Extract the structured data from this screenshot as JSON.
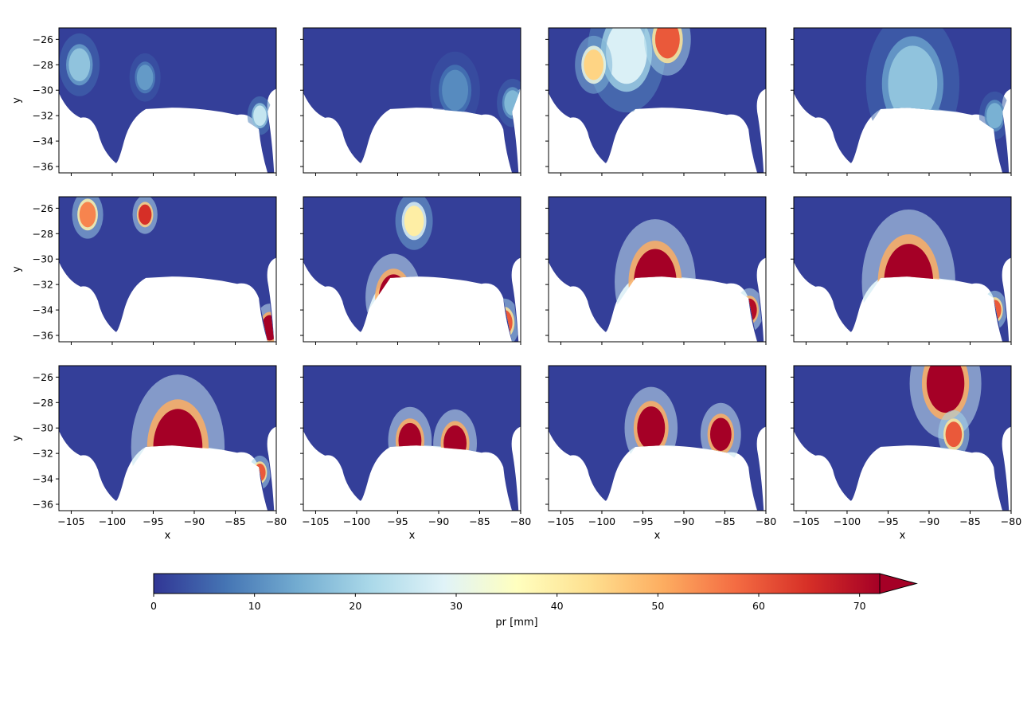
{
  "chart_data": {
    "type": "heatmap",
    "layout": {
      "rows": 3,
      "cols": 4,
      "sharex": true,
      "sharey": true
    },
    "variable": "pr",
    "colorbar": {
      "label": "pr [mm]",
      "min": 0,
      "max": 72,
      "ticks": [
        0,
        10,
        20,
        30,
        40,
        50,
        60,
        70
      ],
      "extend": "max",
      "cmap": "RdYlBu_r",
      "colors": [
        "#313695",
        "#4575b4",
        "#74add1",
        "#abd9e9",
        "#e0f3f8",
        "#ffffbf",
        "#fee090",
        "#fdae61",
        "#f46d43",
        "#d73027",
        "#a50026"
      ]
    },
    "xlabel": "x",
    "ylabel": "y",
    "xlim": [
      -106.5,
      -80
    ],
    "ylim": [
      -36.5,
      -25.1
    ],
    "xticks": [
      -105,
      -100,
      -95,
      -90,
      -85,
      -80
    ],
    "yticks": [
      -26,
      -28,
      -30,
      -32,
      -34,
      -36
    ],
    "land_value": 1,
    "panels": [
      {
        "index": 1,
        "cells": [
          {
            "x": -104,
            "y": -28,
            "r": 1.3,
            "v": 18
          },
          {
            "x": -82,
            "y": -32,
            "r": 0.8,
            "v": 25
          },
          {
            "x": -96,
            "y": -29,
            "r": 1.0,
            "v": 12
          }
        ]
      },
      {
        "index": 2,
        "cells": [
          {
            "x": -88,
            "y": -30,
            "r": 1.6,
            "v": 10
          },
          {
            "x": -81,
            "y": -31,
            "r": 1.0,
            "v": 16
          }
        ]
      },
      {
        "index": 3,
        "cells": [
          {
            "x": -97,
            "y": -27,
            "r": 2.5,
            "v": 28
          },
          {
            "x": -92,
            "y": -26,
            "r": 1.5,
            "v": 60
          },
          {
            "x": -101,
            "y": -28,
            "r": 1.2,
            "v": 45
          }
        ]
      },
      {
        "index": 4,
        "cells": [
          {
            "x": -92,
            "y": -29.5,
            "r": 3.0,
            "v": 18
          },
          {
            "x": -82,
            "y": -32,
            "r": 1.0,
            "v": 15
          }
        ]
      },
      {
        "index": 5,
        "cells": [
          {
            "x": -103,
            "y": -26.5,
            "r": 1.0,
            "v": 55
          },
          {
            "x": -96,
            "y": -26.5,
            "r": 0.8,
            "v": 65
          },
          {
            "x": -80.8,
            "y": -35.4,
            "r": 1.0,
            "v": 72
          }
        ]
      },
      {
        "index": 6,
        "cells": [
          {
            "x": -95.5,
            "y": -33.0,
            "r": 1.8,
            "v": 72
          },
          {
            "x": -93,
            "y": -27,
            "r": 1.2,
            "v": 40
          },
          {
            "x": -82,
            "y": -35,
            "r": 1.0,
            "v": 60
          }
        ]
      },
      {
        "index": 7,
        "cells": [
          {
            "x": -93.5,
            "y": -31.8,
            "r": 2.6,
            "v": 72
          },
          {
            "x": -82,
            "y": -34,
            "r": 0.9,
            "v": 70
          }
        ]
      },
      {
        "index": 8,
        "cells": [
          {
            "x": -92.5,
            "y": -31.8,
            "r": 3.0,
            "v": 72
          },
          {
            "x": -82,
            "y": -34,
            "r": 0.8,
            "v": 60
          }
        ]
      },
      {
        "index": 9,
        "cells": [
          {
            "x": -92,
            "y": -31.5,
            "r": 3.0,
            "v": 72
          },
          {
            "x": -82,
            "y": -33.5,
            "r": 0.7,
            "v": 60
          }
        ]
      },
      {
        "index": 10,
        "cells": [
          {
            "x": -93.5,
            "y": -31.0,
            "r": 1.4,
            "v": 72
          },
          {
            "x": -88,
            "y": -31.2,
            "r": 1.4,
            "v": 72
          }
        ]
      },
      {
        "index": 11,
        "cells": [
          {
            "x": -94,
            "y": -30.0,
            "r": 1.7,
            "v": 72
          },
          {
            "x": -85.5,
            "y": -30.5,
            "r": 1.3,
            "v": 72
          }
        ]
      },
      {
        "index": 12,
        "cells": [
          {
            "x": -88,
            "y": -26.5,
            "r": 2.3,
            "v": 72
          },
          {
            "x": -87,
            "y": -30.5,
            "r": 1.0,
            "v": 60
          }
        ]
      }
    ]
  }
}
